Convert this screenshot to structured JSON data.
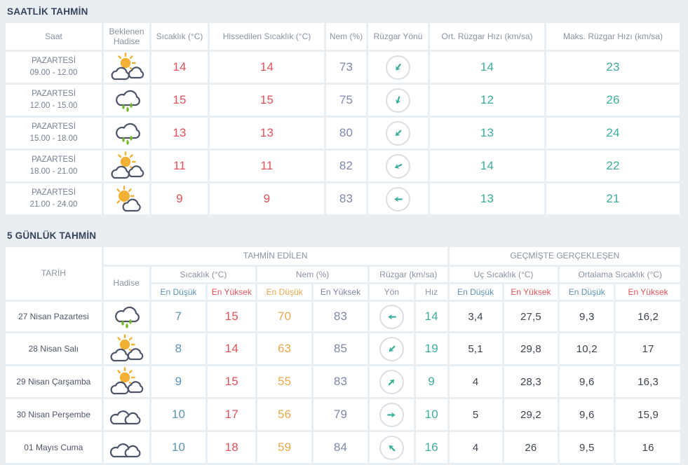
{
  "colors": {
    "page_background": "#e9eef3",
    "cell_background": "#ffffff",
    "title_text": "#36455c",
    "header_text": "#8a94a3",
    "temperature_red": "#e2525c",
    "humidity_purple": "#8088aa",
    "wind_teal": "#3cae9c",
    "min_blue": "#5b95b5",
    "humidity_min_orange": "#e8a94a",
    "past_values_dark": "#3d4350",
    "cloud_stroke": "#4d5468",
    "sun_yellow": "#f2b134",
    "rain_drop_green": "#76b82a"
  },
  "hourly": {
    "title": "SAATLİK TAHMİN",
    "columns": [
      "Saat",
      "Beklenen Hadise",
      "Sıcaklık (°C)",
      "Hissedilen Sıcaklık (°C)",
      "Nem (%)",
      "Rüzgar Yönü",
      "Ort. Rüzgar Hızı (km/sa)",
      "Maks. Rüzgar Hızı (km/sa)"
    ],
    "rows": [
      {
        "day": "PAZARTESİ",
        "time": "09.00 - 12.00",
        "icon": "partly-cloudy",
        "temp": "14",
        "feels": "14",
        "humidity": "73",
        "wind_deg": 215,
        "avg_wind": "14",
        "max_wind": "23"
      },
      {
        "day": "PAZARTESİ",
        "time": "12.00 - 15.00",
        "icon": "rainy",
        "temp": "15",
        "feels": "15",
        "humidity": "75",
        "wind_deg": 200,
        "avg_wind": "12",
        "max_wind": "26"
      },
      {
        "day": "PAZARTESİ",
        "time": "15.00 - 18.00",
        "icon": "rainy",
        "temp": "13",
        "feels": "13",
        "humidity": "80",
        "wind_deg": 225,
        "avg_wind": "13",
        "max_wind": "24"
      },
      {
        "day": "PAZARTESİ",
        "time": "18.00 - 21.00",
        "icon": "partly-cloudy",
        "temp": "11",
        "feels": "11",
        "humidity": "82",
        "wind_deg": 245,
        "avg_wind": "14",
        "max_wind": "22"
      },
      {
        "day": "PAZARTESİ",
        "time": "21.00 - 24.00",
        "icon": "partly-cloudy-few",
        "temp": "9",
        "feels": "9",
        "humidity": "83",
        "wind_deg": 270,
        "avg_wind": "13",
        "max_wind": "21"
      }
    ]
  },
  "daily": {
    "title": "5 GÜNLÜK TAHMİN",
    "header": {
      "date": "TARİH",
      "event": "Hadise",
      "forecast_group": "TAHMİN EDİLEN",
      "past_group": "GEÇMİŞTE GERÇEKLEŞEN",
      "temperature": "Sıcaklık (°C)",
      "humidity": "Nem (%)",
      "wind": "Rüzgar (km/sa)",
      "extreme_temperature": "Uç Sıcaklık (°C)",
      "average_temperature": "Ortalama Sıcaklık (°C)",
      "min": "En Düşük",
      "max": "En Yüksek",
      "direction": "Yön",
      "speed": "Hız"
    },
    "rows": [
      {
        "date": "27 Nisan Pazartesi",
        "icon": "rainy",
        "temp_min": "7",
        "temp_max": "15",
        "hum_min": "70",
        "hum_max": "83",
        "wind_deg": 270,
        "wind_speed": "14",
        "ext_min": "3,4",
        "ext_max": "27,5",
        "avg_min": "9,3",
        "avg_max": "16,2"
      },
      {
        "date": "28 Nisan Salı",
        "icon": "partly-cloudy",
        "temp_min": "8",
        "temp_max": "14",
        "hum_min": "63",
        "hum_max": "85",
        "wind_deg": 225,
        "wind_speed": "19",
        "ext_min": "5,1",
        "ext_max": "29,8",
        "avg_min": "10,2",
        "avg_max": "17"
      },
      {
        "date": "29 Nisan Çarşamba",
        "icon": "partly-cloudy",
        "temp_min": "9",
        "temp_max": "15",
        "hum_min": "55",
        "hum_max": "83",
        "wind_deg": 45,
        "wind_speed": "9",
        "ext_min": "4",
        "ext_max": "28,3",
        "avg_min": "9,6",
        "avg_max": "16,3"
      },
      {
        "date": "30 Nisan Perşembe",
        "icon": "cloudy",
        "temp_min": "10",
        "temp_max": "17",
        "hum_min": "56",
        "hum_max": "79",
        "wind_deg": 90,
        "wind_speed": "10",
        "ext_min": "5",
        "ext_max": "29,2",
        "avg_min": "9,6",
        "avg_max": "15,9"
      },
      {
        "date": "01 Mayıs Cuma",
        "icon": "cloudy",
        "temp_min": "10",
        "temp_max": "18",
        "hum_min": "59",
        "hum_max": "84",
        "wind_deg": 315,
        "wind_speed": "16",
        "ext_min": "4",
        "ext_max": "26",
        "avg_min": "9,5",
        "avg_max": "16"
      }
    ]
  }
}
